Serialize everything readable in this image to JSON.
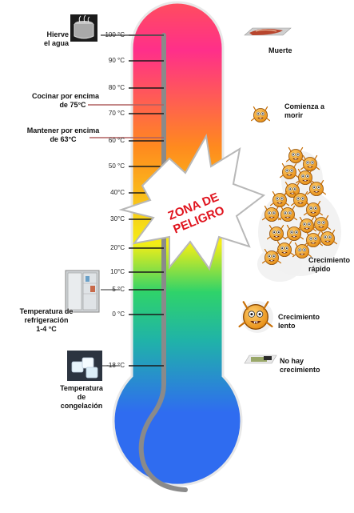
{
  "scale": [
    {
      "label": "100 °C",
      "value": 100
    },
    {
      "label": "90 °C",
      "value": 90
    },
    {
      "label": "80 °C",
      "value": 80
    },
    {
      "label": "70 °C",
      "value": 70
    },
    {
      "label": "60 °C",
      "value": 60
    },
    {
      "label": "50 °C",
      "value": 50
    },
    {
      "label": "40°C",
      "value": 40
    },
    {
      "label": "30°C",
      "value": 30
    },
    {
      "label": "20°C",
      "value": 20
    },
    {
      "label": "10°C",
      "value": 10
    },
    {
      "label": "5 °C",
      "value": 5
    },
    {
      "label": "0 °C",
      "value": 0
    },
    {
      "label": "-18 °C",
      "value": -18
    }
  ],
  "left_labels": {
    "boil": [
      "Hierve",
      "el agua"
    ],
    "cook": [
      "Cocinar por encima",
      "de 75°C"
    ],
    "hold": [
      "Mantener por encima",
      "de  63°C"
    ],
    "fridge": [
      "Temperatura de",
      "refrigeración",
      "1-4 °C"
    ],
    "freeze": [
      "Temperatura",
      "de",
      "congelación"
    ]
  },
  "right_labels": {
    "death": "Muerte",
    "dying": [
      "Comienza a",
      "morir"
    ],
    "rapid": [
      "Crecimiento",
      "rápido"
    ],
    "slow": [
      "Crecimiento",
      "lento"
    ],
    "none": [
      "No hay",
      "crecimiento"
    ]
  },
  "danger_zone": [
    "ZONA DE",
    "PELIGRO"
  ],
  "colors": {
    "top": "#ff4d5e",
    "pink": "#ff2f8a",
    "orange": "#ff8a1e",
    "yellow": "#f4ee16",
    "green": "#2fd36a",
    "teal": "#20b3a8",
    "blue": "#2f6cf0",
    "tube": "#8a8a8a"
  },
  "icons": {
    "pot": "boiling-pot-icon",
    "fridge": "refrigerator-icon",
    "ice": "ice-cubes-icon",
    "meat": "meat-tray-icon",
    "germ": "germ-icon",
    "package": "frozen-package-icon"
  }
}
